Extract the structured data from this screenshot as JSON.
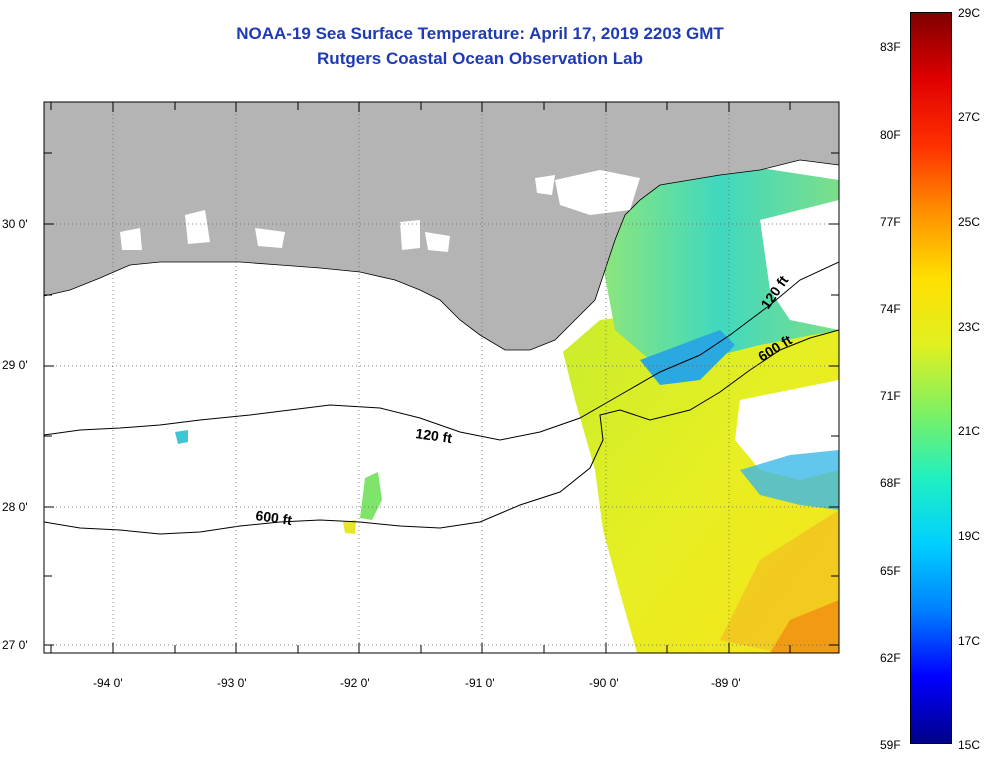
{
  "title": "NOAA-19 Sea Surface Temperature:  April 17, 2019 2203 GMT",
  "subtitle": "Rutgers Coastal Ocean Observation Lab",
  "map": {
    "lon_labels": [
      "-94 0'",
      "-93 0'",
      "-92 0'",
      "-91 0'",
      "-90 0'",
      "-89 0'"
    ],
    "lat_labels": [
      "30 0'",
      "29 0'",
      "28 0'",
      "27 0'"
    ],
    "contours": [
      {
        "label": "120 ft",
        "text": "120 ft"
      },
      {
        "label": "600 ft",
        "text": "600 ft"
      },
      {
        "label": "120 ft",
        "text": "120 ft"
      },
      {
        "label": "600 ft",
        "text": "600 ft"
      }
    ],
    "colors": {
      "land": "#b4b4b4",
      "ocean_nodata": "#ffffff",
      "contour": "#000000"
    }
  },
  "colorbar": {
    "fahrenheit_labels": [
      "83F",
      "80F",
      "77F",
      "74F",
      "71F",
      "68F",
      "65F",
      "62F",
      "59F"
    ],
    "celsius_labels": [
      "29C",
      "27C",
      "25C",
      "23C",
      "21C",
      "19C",
      "17C",
      "15C"
    ],
    "range_c": [
      15,
      29
    ],
    "range_f": [
      59,
      84.2
    ],
    "colors": [
      "#00008b",
      "#0000ff",
      "#0080ff",
      "#00d0ff",
      "#20f0c0",
      "#80f060",
      "#e0f020",
      "#ffe000",
      "#ff9000",
      "#ff3000",
      "#e00000",
      "#800000"
    ]
  }
}
